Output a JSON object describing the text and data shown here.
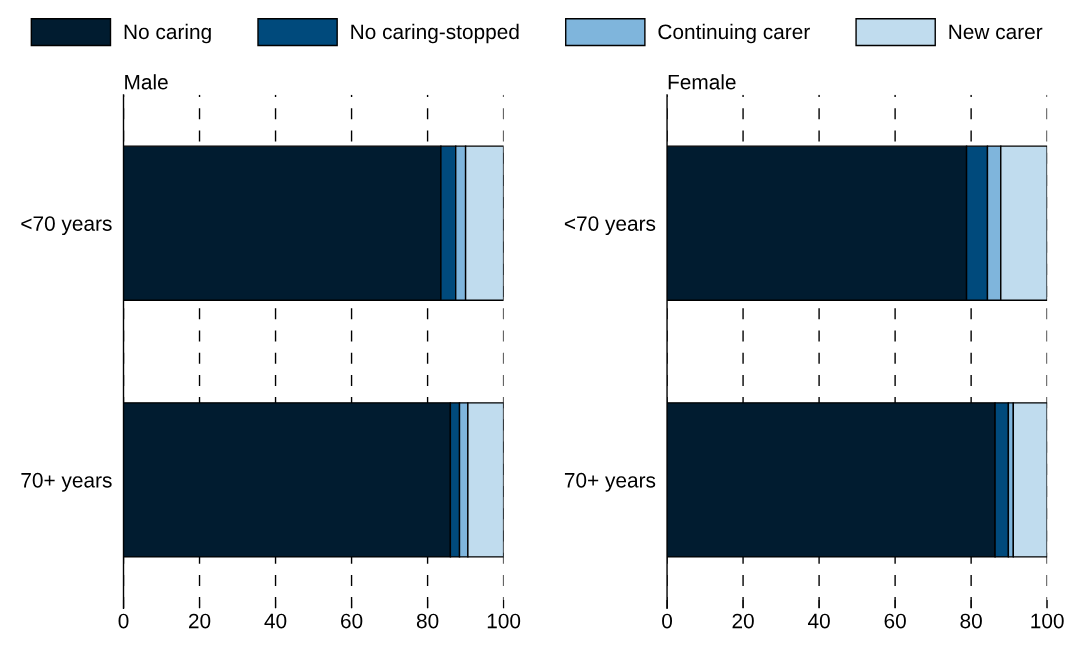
{
  "chart_data": [
    {
      "type": "bar",
      "orientation": "horizontal",
      "stacked": true,
      "title": "Male",
      "categories": [
        "<70 years",
        "70+ years"
      ],
      "xlim": [
        0,
        100
      ],
      "xticks": [
        0,
        20,
        40,
        60,
        80,
        100
      ],
      "grid": "x",
      "legend": "top",
      "series": [
        {
          "name": "No caring",
          "color": "#011c30",
          "values": [
            83.5,
            86.0
          ]
        },
        {
          "name": "No caring-stopped",
          "color": "#004a7c",
          "values": [
            3.9,
            2.4
          ]
        },
        {
          "name": "Continuing carer",
          "color": "#7fb5dc",
          "values": [
            2.6,
            2.2
          ]
        },
        {
          "name": "New carer",
          "color": "#c0dcee",
          "values": [
            10.0,
            9.4
          ]
        }
      ]
    },
    {
      "type": "bar",
      "orientation": "horizontal",
      "stacked": true,
      "title": "Female",
      "categories": [
        "<70 years",
        "70+ years"
      ],
      "xlim": [
        0,
        100
      ],
      "xticks": [
        0,
        20,
        40,
        60,
        80,
        100
      ],
      "grid": "x",
      "series": [
        {
          "color": "#011c30",
          "values": [
            78.8,
            86.3
          ]
        },
        {
          "color": "#004a7c",
          "values": [
            5.5,
            3.5
          ]
        },
        {
          "color": "#7fb5dc",
          "values": [
            3.5,
            1.3
          ]
        },
        {
          "color": "#c0dcee",
          "values": [
            12.2,
            8.9
          ]
        }
      ]
    }
  ]
}
